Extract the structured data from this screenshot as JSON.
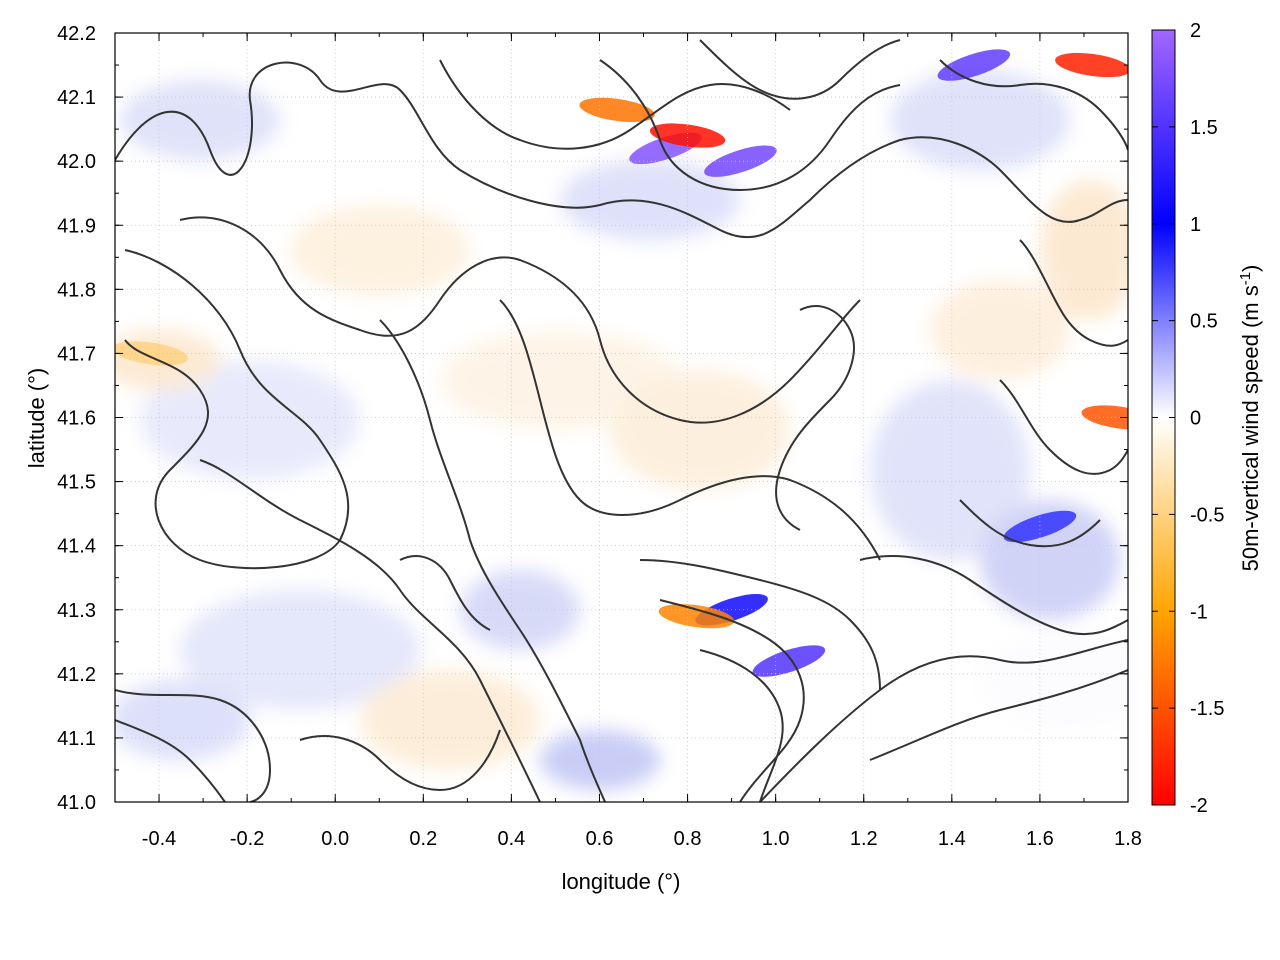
{
  "chart_data": {
    "type": "heatmap",
    "title": "",
    "xlabel": "longitude (°)",
    "ylabel": "latitude (°)",
    "colorbar_label_main": "50m-vertical wind speed (m s",
    "colorbar_label_sup": "-1",
    "colorbar_label_close": ")",
    "xlim": [
      -0.5,
      1.8
    ],
    "ylim": [
      41.0,
      42.2
    ],
    "x_ticks": [
      {
        "value": -0.4,
        "label": "-0.4"
      },
      {
        "value": -0.2,
        "label": "-0.2"
      },
      {
        "value": 0.0,
        "label": "0.0"
      },
      {
        "value": 0.2,
        "label": "0.2"
      },
      {
        "value": 0.4,
        "label": "0.4"
      },
      {
        "value": 0.6,
        "label": "0.6"
      },
      {
        "value": 0.8,
        "label": "0.8"
      },
      {
        "value": 1.0,
        "label": "1.0"
      },
      {
        "value": 1.2,
        "label": "1.2"
      },
      {
        "value": 1.4,
        "label": "1.4"
      },
      {
        "value": 1.6,
        "label": "1.6"
      },
      {
        "value": 1.8,
        "label": "1.8"
      }
    ],
    "y_ticks": [
      {
        "value": 41.0,
        "label": "41.0"
      },
      {
        "value": 41.1,
        "label": "41.1"
      },
      {
        "value": 41.2,
        "label": "41.2"
      },
      {
        "value": 41.3,
        "label": "41.3"
      },
      {
        "value": 41.4,
        "label": "41.4"
      },
      {
        "value": 41.5,
        "label": "41.5"
      },
      {
        "value": 41.6,
        "label": "41.6"
      },
      {
        "value": 41.7,
        "label": "41.7"
      },
      {
        "value": 41.8,
        "label": "41.8"
      },
      {
        "value": 41.9,
        "label": "41.9"
      },
      {
        "value": 42.0,
        "label": "42.0"
      },
      {
        "value": 42.1,
        "label": "42.1"
      },
      {
        "value": 42.2,
        "label": "42.2"
      }
    ],
    "colorbar": {
      "range": [
        -2,
        2
      ],
      "ticks": [
        {
          "value": 2,
          "label": "2"
        },
        {
          "value": 1.5,
          "label": "1.5"
        },
        {
          "value": 1,
          "label": "1"
        },
        {
          "value": 0.5,
          "label": "0.5"
        },
        {
          "value": 0,
          "label": "0"
        },
        {
          "value": -0.5,
          "label": "-0.5"
        },
        {
          "value": -1,
          "label": "-1"
        },
        {
          "value": -1.5,
          "label": "-1.5"
        },
        {
          "value": -2,
          "label": "-2"
        }
      ],
      "stops": [
        {
          "value": -2,
          "color": "#ff0000"
        },
        {
          "value": -1,
          "color": "#ffa500"
        },
        {
          "value": 0,
          "color": "#ffffff"
        },
        {
          "value": 1,
          "color": "#0000ff"
        },
        {
          "value": 2,
          "color": "#a366ff"
        }
      ]
    },
    "grid": true,
    "contour_color": "#333333",
    "features": [
      {
        "name": "strong updraft band north",
        "lon": 0.75,
        "lat": 42.02,
        "value": 1.8
      },
      {
        "name": "strong updraft band north",
        "lon": 0.92,
        "lat": 42.0,
        "value": 1.7
      },
      {
        "name": "strong updraft band north-east",
        "lon": 1.45,
        "lat": 42.15,
        "value": 1.6
      },
      {
        "name": "strong downdraft north",
        "lon": 0.8,
        "lat": 42.04,
        "value": -1.9
      },
      {
        "name": "strong downdraft north-east corner",
        "lon": 1.72,
        "lat": 42.15,
        "value": -1.8
      },
      {
        "name": "downdraft north",
        "lon": 0.64,
        "lat": 42.08,
        "value": -1.3
      },
      {
        "name": "updraft band south",
        "lon": 1.03,
        "lat": 41.22,
        "value": 1.5
      },
      {
        "name": "updraft south",
        "lon": 0.9,
        "lat": 41.3,
        "value": 1.1
      },
      {
        "name": "downdraft south",
        "lon": 0.82,
        "lat": 41.29,
        "value": -1.2
      },
      {
        "name": "updraft east",
        "lon": 1.6,
        "lat": 41.43,
        "value": 0.8
      },
      {
        "name": "downdraft east edge",
        "lon": 1.78,
        "lat": 41.6,
        "value": -1.5
      },
      {
        "name": "weak downdraft west",
        "lon": -0.42,
        "lat": 41.7,
        "value": -0.5
      }
    ]
  }
}
